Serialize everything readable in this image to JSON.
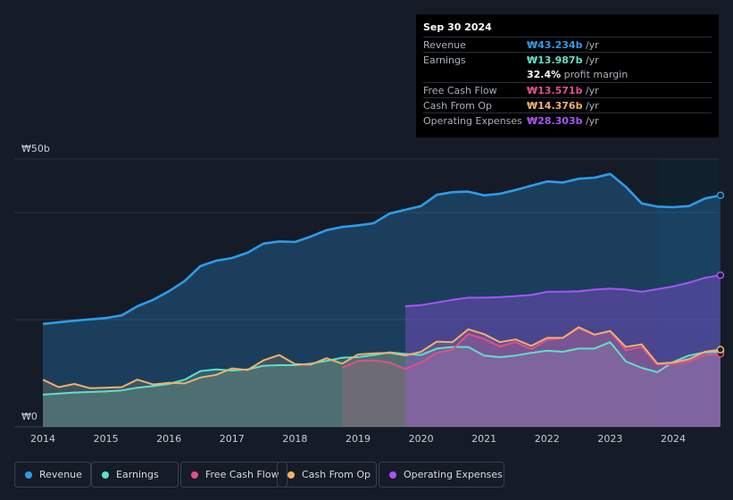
{
  "tooltip": {
    "date": "Sep 30 2024",
    "rows": [
      {
        "label": "Revenue",
        "value": "₩43.234b",
        "unit": " /yr",
        "color": "#2d9ce8"
      },
      {
        "label": "Earnings",
        "value": "₩13.987b",
        "unit": " /yr",
        "color": "#5ee0c8"
      },
      {
        "label": "",
        "value": "32.4%",
        "unit": " profit margin",
        "color": "#ffffff"
      },
      {
        "label": "Free Cash Flow",
        "value": "₩13.571b",
        "unit": " /yr",
        "color": "#e0508a"
      },
      {
        "label": "Cash From Op",
        "value": "₩14.376b",
        "unit": " /yr",
        "color": "#f0b06a"
      },
      {
        "label": "Operating Expenses",
        "value": "₩28.303b",
        "unit": " /yr",
        "color": "#a855f7"
      }
    ]
  },
  "legend": [
    {
      "label": "Revenue",
      "color": "#2d9ce8"
    },
    {
      "label": "Earnings",
      "color": "#5ee0c8"
    },
    {
      "label": "Free Cash Flow",
      "color": "#e0508a"
    },
    {
      "label": "Cash From Op",
      "color": "#f0b06a"
    },
    {
      "label": "Operating Expenses",
      "color": "#a855f7"
    }
  ],
  "chart_data": {
    "type": "area",
    "title": "",
    "xlabel": "",
    "ylabel": "",
    "xlim": [
      2013.8,
      2024.8
    ],
    "ylim": [
      0,
      50
    ],
    "y_tick_labels": [
      {
        "value": 50,
        "label": "₩50b"
      },
      {
        "value": 0,
        "label": "₩0"
      }
    ],
    "x_ticks": [
      2014,
      2015,
      2016,
      2017,
      2018,
      2019,
      2020,
      2021,
      2022,
      2023,
      2024
    ],
    "forecast_start": 2023.75,
    "series": [
      {
        "name": "Revenue",
        "color": "#2d9ce8",
        "points": [
          [
            2014.0,
            19.2
          ],
          [
            2014.5,
            19.8
          ],
          [
            2015.0,
            20.3
          ],
          [
            2015.25,
            20.8
          ],
          [
            2015.5,
            22.5
          ],
          [
            2015.75,
            23.7
          ],
          [
            2016.0,
            25.3
          ],
          [
            2016.25,
            27.2
          ],
          [
            2016.5,
            30.0
          ],
          [
            2016.75,
            31.0
          ],
          [
            2017.0,
            31.5
          ],
          [
            2017.25,
            32.5
          ],
          [
            2017.5,
            34.2
          ],
          [
            2017.75,
            34.6
          ],
          [
            2018.0,
            34.5
          ],
          [
            2018.25,
            35.5
          ],
          [
            2018.5,
            36.7
          ],
          [
            2018.75,
            37.3
          ],
          [
            2019.0,
            37.6
          ],
          [
            2019.25,
            38.0
          ],
          [
            2019.5,
            39.8
          ],
          [
            2019.75,
            40.5
          ],
          [
            2020.0,
            41.2
          ],
          [
            2020.25,
            43.3
          ],
          [
            2020.5,
            43.8
          ],
          [
            2020.75,
            43.9
          ],
          [
            2021.0,
            43.2
          ],
          [
            2021.25,
            43.5
          ],
          [
            2021.5,
            44.2
          ],
          [
            2021.75,
            45.0
          ],
          [
            2022.0,
            45.8
          ],
          [
            2022.25,
            45.6
          ],
          [
            2022.5,
            46.3
          ],
          [
            2022.75,
            46.5
          ],
          [
            2023.0,
            47.2
          ],
          [
            2023.25,
            44.8
          ],
          [
            2023.5,
            41.7
          ],
          [
            2023.75,
            41.1
          ],
          [
            2024.0,
            41.0
          ],
          [
            2024.25,
            41.2
          ],
          [
            2024.5,
            42.6
          ],
          [
            2024.75,
            43.2
          ]
        ]
      },
      {
        "name": "Earnings",
        "color": "#5ee0c8",
        "points": [
          [
            2014.0,
            6.0
          ],
          [
            2014.5,
            6.4
          ],
          [
            2015.0,
            6.6
          ],
          [
            2015.25,
            6.8
          ],
          [
            2015.5,
            7.3
          ],
          [
            2015.75,
            7.6
          ],
          [
            2016.0,
            8.0
          ],
          [
            2016.25,
            8.8
          ],
          [
            2016.5,
            10.4
          ],
          [
            2016.75,
            10.7
          ],
          [
            2017.0,
            10.5
          ],
          [
            2017.25,
            10.7
          ],
          [
            2017.5,
            11.4
          ],
          [
            2017.75,
            11.5
          ],
          [
            2018.0,
            11.5
          ],
          [
            2018.25,
            11.8
          ],
          [
            2018.5,
            12.3
          ],
          [
            2018.75,
            12.9
          ],
          [
            2019.0,
            13.0
          ],
          [
            2019.25,
            13.4
          ],
          [
            2019.5,
            13.9
          ],
          [
            2019.75,
            13.6
          ],
          [
            2020.0,
            13.4
          ],
          [
            2020.25,
            14.6
          ],
          [
            2020.5,
            14.9
          ],
          [
            2020.75,
            14.9
          ],
          [
            2021.0,
            13.3
          ],
          [
            2021.25,
            13.0
          ],
          [
            2021.5,
            13.3
          ],
          [
            2021.75,
            13.8
          ],
          [
            2022.0,
            14.2
          ],
          [
            2022.25,
            14.0
          ],
          [
            2022.5,
            14.6
          ],
          [
            2022.75,
            14.6
          ],
          [
            2023.0,
            15.8
          ],
          [
            2023.25,
            12.2
          ],
          [
            2023.5,
            11.0
          ],
          [
            2023.75,
            10.2
          ],
          [
            2024.0,
            12.1
          ],
          [
            2024.25,
            13.3
          ],
          [
            2024.5,
            13.9
          ],
          [
            2024.75,
            14.0
          ]
        ]
      },
      {
        "name": "Free Cash Flow",
        "color": "#e0508a",
        "points": [
          [
            2018.75,
            11.0
          ],
          [
            2019.0,
            12.3
          ],
          [
            2019.25,
            12.4
          ],
          [
            2019.5,
            12.0
          ],
          [
            2019.75,
            10.8
          ],
          [
            2020.0,
            12.0
          ],
          [
            2020.25,
            13.8
          ],
          [
            2020.5,
            14.4
          ],
          [
            2020.75,
            17.3
          ],
          [
            2021.0,
            16.4
          ],
          [
            2021.25,
            15.0
          ],
          [
            2021.5,
            15.8
          ],
          [
            2021.75,
            14.5
          ],
          [
            2022.0,
            16.2
          ],
          [
            2022.25,
            16.6
          ],
          [
            2022.5,
            18.4
          ],
          [
            2022.75,
            17.2
          ],
          [
            2023.0,
            17.8
          ],
          [
            2023.25,
            14.3
          ],
          [
            2023.5,
            14.9
          ],
          [
            2023.75,
            11.6
          ],
          [
            2024.0,
            11.7
          ],
          [
            2024.25,
            12.2
          ],
          [
            2024.5,
            13.4
          ],
          [
            2024.75,
            13.6
          ]
        ]
      },
      {
        "name": "Cash From Op",
        "color": "#f0b06a",
        "points": [
          [
            2014.0,
            8.8
          ],
          [
            2014.25,
            7.4
          ],
          [
            2014.5,
            8.0
          ],
          [
            2014.75,
            7.2
          ],
          [
            2015.0,
            7.3
          ],
          [
            2015.25,
            7.4
          ],
          [
            2015.5,
            8.8
          ],
          [
            2015.75,
            7.9
          ],
          [
            2016.0,
            8.2
          ],
          [
            2016.25,
            8.1
          ],
          [
            2016.5,
            9.2
          ],
          [
            2016.75,
            9.7
          ],
          [
            2017.0,
            10.9
          ],
          [
            2017.25,
            10.6
          ],
          [
            2017.5,
            12.4
          ],
          [
            2017.75,
            13.4
          ],
          [
            2018.0,
            11.7
          ],
          [
            2018.25,
            11.6
          ],
          [
            2018.5,
            12.8
          ],
          [
            2018.75,
            11.8
          ],
          [
            2019.0,
            13.5
          ],
          [
            2019.25,
            13.7
          ],
          [
            2019.5,
            13.8
          ],
          [
            2019.75,
            13.3
          ],
          [
            2020.0,
            14.0
          ],
          [
            2020.25,
            15.9
          ],
          [
            2020.5,
            15.8
          ],
          [
            2020.75,
            18.2
          ],
          [
            2021.0,
            17.3
          ],
          [
            2021.25,
            15.8
          ],
          [
            2021.5,
            16.3
          ],
          [
            2021.75,
            15.1
          ],
          [
            2022.0,
            16.6
          ],
          [
            2022.25,
            16.6
          ],
          [
            2022.5,
            18.6
          ],
          [
            2022.75,
            17.2
          ],
          [
            2023.0,
            17.9
          ],
          [
            2023.25,
            14.9
          ],
          [
            2023.5,
            15.4
          ],
          [
            2023.75,
            11.8
          ],
          [
            2024.0,
            12.0
          ],
          [
            2024.25,
            12.6
          ],
          [
            2024.5,
            14.0
          ],
          [
            2024.75,
            14.4
          ]
        ]
      },
      {
        "name": "Operating Expenses",
        "color": "#a855f7",
        "points": [
          [
            2019.75,
            22.5
          ],
          [
            2020.0,
            22.7
          ],
          [
            2020.25,
            23.2
          ],
          [
            2020.5,
            23.7
          ],
          [
            2020.75,
            24.1
          ],
          [
            2021.0,
            24.1
          ],
          [
            2021.25,
            24.2
          ],
          [
            2021.5,
            24.4
          ],
          [
            2021.75,
            24.6
          ],
          [
            2022.0,
            25.2
          ],
          [
            2022.25,
            25.2
          ],
          [
            2022.5,
            25.3
          ],
          [
            2022.75,
            25.6
          ],
          [
            2023.0,
            25.8
          ],
          [
            2023.25,
            25.6
          ],
          [
            2023.5,
            25.2
          ],
          [
            2023.75,
            25.7
          ],
          [
            2024.0,
            26.2
          ],
          [
            2024.25,
            26.9
          ],
          [
            2024.5,
            27.8
          ],
          [
            2024.75,
            28.3
          ]
        ]
      }
    ]
  }
}
